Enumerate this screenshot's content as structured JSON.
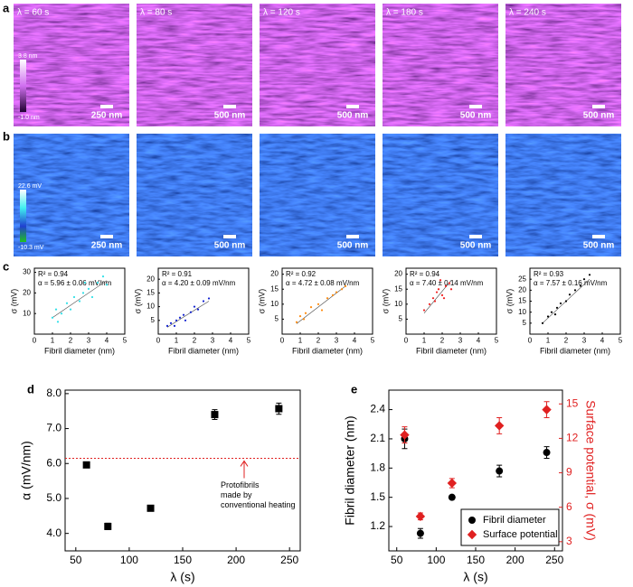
{
  "panel_labels": [
    "a",
    "b",
    "c",
    "d",
    "e"
  ],
  "images": {
    "row_a": {
      "titles": [
        "λ = 60 s",
        "λ = 80 s",
        "λ = 120 s",
        "λ = 180 s",
        "λ = 240 s"
      ],
      "scale_bars": [
        "250 nm",
        "500 nm",
        "500 nm",
        "500 nm",
        "500 nm"
      ],
      "colorbar": [
        "3.8 nm",
        "-1.0 nm"
      ]
    },
    "row_b": {
      "scale_bars": [
        "250 nm",
        "500 nm",
        "500 nm",
        "500 nm",
        "500 nm"
      ],
      "colorbar": [
        "22.6 mV",
        "-10.3 mV"
      ]
    }
  },
  "chart_data": [
    {
      "type": "scatter",
      "annotations": [
        "R² = 0.94",
        "α = 5.96 ± 0.06 mV/nm"
      ],
      "xlabel": "Fibril diameter (nm)",
      "ylabel": "σ (mV)",
      "color": "#30e0e8",
      "x": [
        1,
        1.2,
        1.5,
        1.8,
        2,
        2.2,
        2.5,
        2.7,
        3,
        3.2,
        3.5,
        3.8,
        4,
        1.3,
        2.8
      ],
      "values": [
        8,
        12,
        10,
        15,
        12,
        18,
        16,
        20,
        22,
        18,
        25,
        28,
        24,
        6,
        25
      ],
      "fit": {
        "x": [
          1,
          4
        ],
        "y": [
          8,
          26
        ]
      },
      "xlim": [
        0,
        5
      ],
      "xticks": [
        0,
        1,
        2,
        3,
        4,
        5
      ],
      "ylim": [
        0,
        32
      ],
      "yticks": [
        10,
        20,
        30
      ]
    },
    {
      "type": "scatter",
      "annotations": [
        "R² = 0.91",
        "α = 4.20 ± 0.09 mV/nm"
      ],
      "xlabel": "Fibril diameter (nm)",
      "ylabel": "σ (mV)",
      "color": "#1020d0",
      "x": [
        0.5,
        0.7,
        1,
        1.2,
        1.5,
        1.8,
        2,
        2.2,
        2.5,
        0.9,
        1.4,
        2.8
      ],
      "values": [
        3,
        4,
        5,
        6,
        5,
        8,
        10,
        9,
        12,
        3,
        7,
        13
      ],
      "fit": {
        "x": [
          0.5,
          2.8
        ],
        "y": [
          2.5,
          12
        ]
      },
      "xlim": [
        0,
        5
      ],
      "xticks": [
        0,
        1,
        2,
        3,
        4,
        5
      ],
      "ylim": [
        0,
        24
      ],
      "yticks": [
        5,
        10,
        15,
        20
      ]
    },
    {
      "type": "scatter",
      "annotations": [
        "R² = 0.92",
        "α = 4.72 ± 0.08 mV/nm"
      ],
      "xlabel": "Fibril diameter (nm)",
      "ylabel": "σ (mV)",
      "color": "#ff8c10",
      "x": [
        0.8,
        1,
        1.3,
        1.6,
        2,
        2.2,
        2.5,
        2.8,
        3,
        3.3,
        3.5,
        1.2
      ],
      "values": [
        4,
        6,
        7,
        9,
        10,
        8,
        12,
        13,
        14,
        15,
        16,
        5
      ],
      "fit": {
        "x": [
          0.8,
          3.5
        ],
        "y": [
          3.5,
          16
        ]
      },
      "xlim": [
        0,
        5
      ],
      "xticks": [
        0,
        1,
        2,
        3,
        4,
        5
      ],
      "ylim": [
        0,
        22
      ],
      "yticks": [
        5,
        10,
        15,
        20
      ]
    },
    {
      "type": "scatter",
      "annotations": [
        "R² = 0.94",
        "α = 7.40 ± 0.14 mV/nm"
      ],
      "xlabel": "Fibril diameter (nm)",
      "ylabel": "σ (mV)",
      "color": "#f02020",
      "x": [
        1,
        1.3,
        1.5,
        1.7,
        1.8,
        2,
        2.2,
        2.4,
        1.6,
        1.9,
        2.1,
        2.5
      ],
      "values": [
        8,
        10,
        12,
        14,
        15,
        13,
        16,
        17,
        11,
        18,
        12,
        15
      ],
      "fit": {
        "x": [
          1,
          2.5
        ],
        "y": [
          7,
          18
        ]
      },
      "xlim": [
        0,
        5
      ],
      "xticks": [
        0,
        1,
        2,
        3,
        4,
        5
      ],
      "ylim": [
        0,
        22
      ],
      "yticks": [
        5,
        10,
        15,
        20
      ]
    },
    {
      "type": "scatter",
      "annotations": [
        "R² = 0.93",
        "α = 7.57 ± 0.16 mV/nm"
      ],
      "xlabel": "Fibril diameter (nm)",
      "ylabel": "σ (mV)",
      "color": "#000000",
      "x": [
        0.7,
        1,
        1.2,
        1.5,
        1.7,
        2,
        2.2,
        2.5,
        2.8,
        3,
        3.3,
        1.4
      ],
      "values": [
        5,
        8,
        10,
        12,
        14,
        15,
        18,
        20,
        22,
        25,
        27,
        9
      ],
      "fit": {
        "x": [
          0.7,
          3.3
        ],
        "y": [
          5,
          25
        ]
      },
      "xlim": [
        0,
        5
      ],
      "xticks": [
        0,
        1,
        2,
        3,
        4,
        5
      ],
      "ylim": [
        0,
        30
      ],
      "yticks": [
        5,
        10,
        15,
        20,
        25
      ]
    },
    {
      "type": "scatter",
      "xlabel": "λ (s)",
      "ylabel": "α (mV/nm)",
      "color": "#000000",
      "marker": "square",
      "x": [
        60,
        80,
        120,
        180,
        240
      ],
      "values": [
        5.96,
        4.2,
        4.72,
        7.4,
        7.57
      ],
      "errors": [
        0.06,
        0.09,
        0.08,
        0.14,
        0.16
      ],
      "reference_y": 6.15,
      "reference_color": "#e02020",
      "reference_label": [
        "Protofibrils",
        "made by",
        "conventional heating"
      ],
      "xlim": [
        40,
        260
      ],
      "xticks": [
        50,
        100,
        150,
        200,
        250
      ],
      "ylim": [
        3.5,
        8.1
      ],
      "yticks": [
        {
          "value": 4,
          "label": "4.0"
        },
        {
          "value": 5,
          "label": "5.0"
        },
        {
          "value": 6,
          "label": "6.0"
        },
        {
          "value": 7,
          "label": "7.0"
        },
        {
          "value": 8,
          "label": "8.0"
        }
      ]
    },
    {
      "type": "scatter",
      "xlabel": "λ (s)",
      "ylabel": "Fibril diameter (nm)",
      "y2label": "Surface potential, σ (mV)",
      "y2color": "#e02020",
      "legend": "lower right",
      "x": [
        60,
        80,
        120,
        180,
        240
      ],
      "series": [
        {
          "name": "Fibril diameter",
          "color": "#000000",
          "marker": "circle",
          "values": [
            2.1,
            1.13,
            1.5,
            1.77,
            1.96
          ],
          "errors": [
            0.1,
            0.05,
            0.02,
            0.06,
            0.06
          ]
        },
        {
          "name": "Surface potential",
          "color": "#e02020",
          "marker": "diamond",
          "axis": "y2",
          "values": [
            12.3,
            5.2,
            8.1,
            13.1,
            14.5
          ],
          "errors": [
            0.7,
            0.3,
            0.4,
            0.7,
            0.7
          ]
        }
      ],
      "xlim": [
        40,
        260
      ],
      "xticks": [
        50,
        100,
        150,
        200,
        250
      ],
      "ylim": [
        0.95,
        2.6
      ],
      "yticks": [
        1.2,
        1.5,
        1.8,
        2.1,
        2.4
      ],
      "y2lim": [
        2.2,
        16.2
      ],
      "y2ticks": [
        3,
        6,
        9,
        12,
        15
      ]
    }
  ]
}
